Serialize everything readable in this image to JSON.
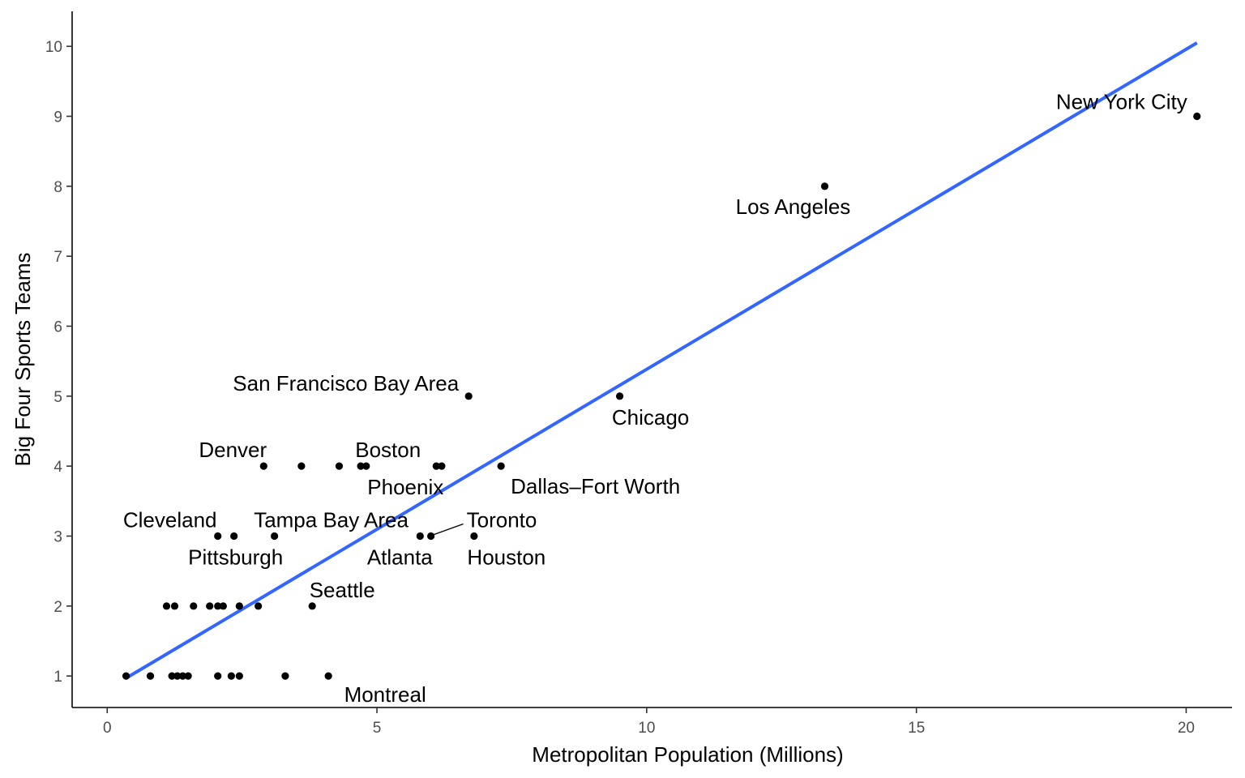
{
  "chart_data": {
    "type": "scatter",
    "xlabel": "Metropolitan Population (Millions)",
    "ylabel": "Big Four Sports Teams",
    "xlim": [
      -0.65,
      20.85
    ],
    "ylim": [
      0.55,
      10.5
    ],
    "x_ticks": [
      0,
      5,
      10,
      15,
      20
    ],
    "x_tick_labels": [
      "0",
      "5",
      "10",
      "15",
      "20"
    ],
    "y_ticks": [
      1,
      2,
      3,
      4,
      5,
      6,
      7,
      8,
      9,
      10
    ],
    "y_tick_labels": [
      "1",
      "2",
      "3",
      "4",
      "5",
      "6",
      "7",
      "8",
      "9",
      "10"
    ],
    "grid": false,
    "colors": {
      "points": "#000000",
      "trend_line": "#3366FF",
      "axis": "#000000",
      "tick_labels": "#4d4d4d"
    },
    "points": [
      {
        "x": 20.2,
        "y": 9,
        "label": "New York City"
      },
      {
        "x": 13.3,
        "y": 8,
        "label": "Los Angeles"
      },
      {
        "x": 9.5,
        "y": 5,
        "label": "Chicago"
      },
      {
        "x": 6.7,
        "y": 5,
        "label": "San Francisco Bay Area"
      },
      {
        "x": 7.3,
        "y": 4,
        "label": "Dallas–Fort Worth"
      },
      {
        "x": 6.1,
        "y": 4,
        "label": "Phoenix"
      },
      {
        "x": 6.2,
        "y": 4,
        "label": ""
      },
      {
        "x": 4.8,
        "y": 4,
        "label": "Boston"
      },
      {
        "x": 4.7,
        "y": 4,
        "label": ""
      },
      {
        "x": 4.3,
        "y": 4,
        "label": ""
      },
      {
        "x": 3.6,
        "y": 4,
        "label": ""
      },
      {
        "x": 2.9,
        "y": 4,
        "label": "Denver"
      },
      {
        "x": 6.8,
        "y": 3,
        "label": "Houston"
      },
      {
        "x": 6.0,
        "y": 3,
        "label": "Toronto"
      },
      {
        "x": 5.8,
        "y": 3,
        "label": "Atlanta"
      },
      {
        "x": 3.1,
        "y": 3,
        "label": "Tampa Bay Area"
      },
      {
        "x": 2.35,
        "y": 3,
        "label": "Pittsburgh"
      },
      {
        "x": 2.05,
        "y": 3,
        "label": "Cleveland"
      },
      {
        "x": 3.8,
        "y": 2,
        "label": "Seattle"
      },
      {
        "x": 2.8,
        "y": 2,
        "label": ""
      },
      {
        "x": 2.45,
        "y": 2,
        "label": ""
      },
      {
        "x": 2.15,
        "y": 2,
        "label": ""
      },
      {
        "x": 2.05,
        "y": 2,
        "label": ""
      },
      {
        "x": 1.9,
        "y": 2,
        "label": ""
      },
      {
        "x": 1.6,
        "y": 2,
        "label": ""
      },
      {
        "x": 1.25,
        "y": 2,
        "label": ""
      },
      {
        "x": 1.1,
        "y": 2,
        "label": ""
      },
      {
        "x": 4.1,
        "y": 1,
        "label": "Montreal"
      },
      {
        "x": 3.3,
        "y": 1,
        "label": ""
      },
      {
        "x": 2.45,
        "y": 1,
        "label": ""
      },
      {
        "x": 2.3,
        "y": 1,
        "label": ""
      },
      {
        "x": 2.05,
        "y": 1,
        "label": ""
      },
      {
        "x": 1.5,
        "y": 1,
        "label": ""
      },
      {
        "x": 1.4,
        "y": 1,
        "label": ""
      },
      {
        "x": 1.3,
        "y": 1,
        "label": ""
      },
      {
        "x": 1.2,
        "y": 1,
        "label": ""
      },
      {
        "x": 0.8,
        "y": 1,
        "label": ""
      },
      {
        "x": 0.35,
        "y": 1,
        "label": ""
      }
    ],
    "trend_line": {
      "x": [
        0.35,
        20.2
      ],
      "y": [
        0.97,
        10.05
      ]
    }
  }
}
